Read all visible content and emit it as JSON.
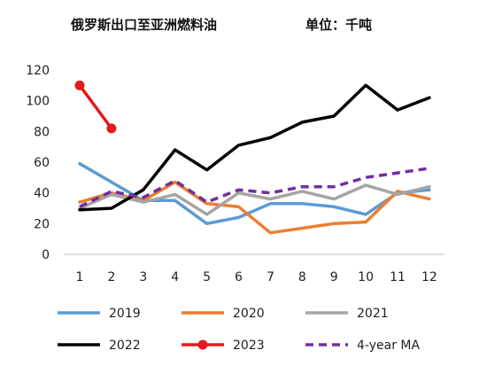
{
  "chart_data": {
    "type": "line",
    "title": "俄罗斯出口至亚洲燃料油",
    "unit_label": "单位：千吨",
    "x": [
      1,
      2,
      3,
      4,
      5,
      6,
      7,
      8,
      9,
      10,
      11,
      12
    ],
    "ylim": [
      0,
      120
    ],
    "yticks": [
      0,
      20,
      40,
      60,
      80,
      100,
      120
    ],
    "grid": false,
    "legend": "bottom",
    "series": [
      {
        "name": "2019",
        "color": "#5b9bd5",
        "style": "solid",
        "marker": false,
        "values": [
          59,
          47,
          35,
          35,
          20,
          24,
          33,
          33,
          31,
          26,
          40,
          42
        ]
      },
      {
        "name": "2020",
        "color": "#ed7d31",
        "style": "solid",
        "marker": false,
        "values": [
          34,
          40,
          35,
          47,
          33,
          31,
          14,
          17,
          20,
          21,
          41,
          36
        ]
      },
      {
        "name": "2021",
        "color": "#a5a5a5",
        "style": "solid",
        "marker": false,
        "values": [
          30,
          39,
          34,
          39,
          26,
          40,
          36,
          41,
          36,
          45,
          39,
          44
        ]
      },
      {
        "name": "2022",
        "color": "#000000",
        "style": "solid",
        "marker": false,
        "values": [
          29,
          30,
          42,
          68,
          55,
          71,
          76,
          86,
          90,
          110,
          94,
          102
        ]
      },
      {
        "name": "2023",
        "color": "#e31a1c",
        "style": "solid",
        "marker": true,
        "values": [
          110,
          82,
          null,
          null,
          null,
          null,
          null,
          null,
          null,
          null,
          null,
          null
        ]
      },
      {
        "name": "4-year MA",
        "color": "#7030a0",
        "style": "dashed",
        "marker": false,
        "values": [
          31,
          41,
          37,
          48,
          34,
          42,
          40,
          44,
          44,
          50,
          53,
          56
        ]
      }
    ]
  }
}
